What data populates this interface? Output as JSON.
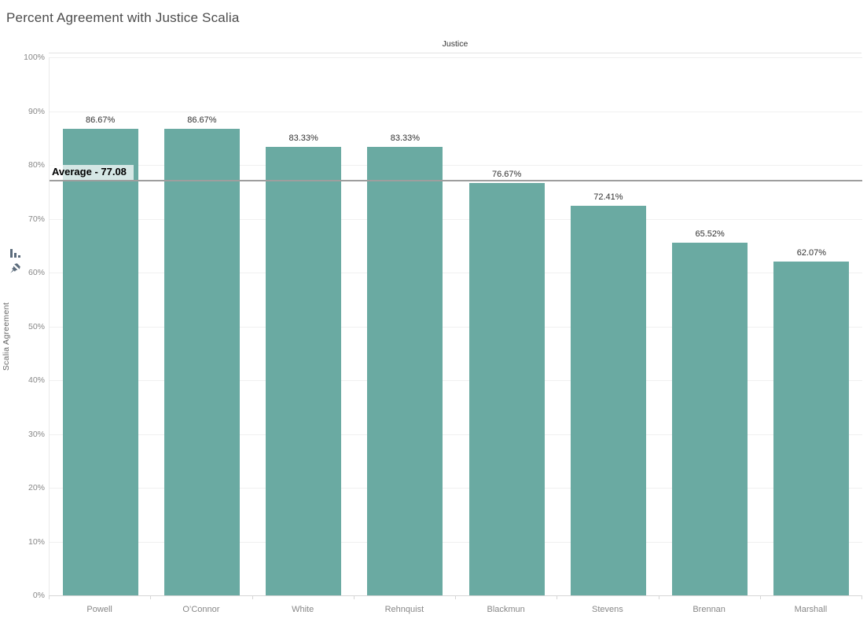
{
  "header": {
    "title": "Percent Agreement with Justice Scalia"
  },
  "column_header": "Justice",
  "y_axis": {
    "title": "Scalia Agreement",
    "ticks": [
      "0%",
      "10%",
      "20%",
      "30%",
      "40%",
      "50%",
      "60%",
      "70%",
      "80%",
      "90%",
      "100%"
    ]
  },
  "icons": {
    "sort": "sort-descending-icon",
    "pin": "pin-icon",
    "color": "#5c6c7c"
  },
  "chart_data": {
    "type": "bar",
    "title": "Percent Agreement with Justice Scalia",
    "xlabel": "Justice",
    "ylabel": "Scalia Agreement",
    "categories": [
      "Powell",
      "O’Connor",
      "White",
      "Rehnquist",
      "Blackmun",
      "Stevens",
      "Brennan",
      "Marshall"
    ],
    "values": [
      86.67,
      86.67,
      83.33,
      83.33,
      76.67,
      72.41,
      65.52,
      62.07
    ],
    "value_labels": [
      "86.67%",
      "86.67%",
      "83.33%",
      "83.33%",
      "76.67%",
      "72.41%",
      "65.52%",
      "62.07%"
    ],
    "ylim": [
      0,
      100
    ],
    "y_tick_step": 10,
    "grid": true,
    "legend": "none",
    "bar_color": "#6aaaa2",
    "reference_line": {
      "value": 77.08,
      "label": "Average - 77.08",
      "color": "#9e9e9e"
    }
  }
}
